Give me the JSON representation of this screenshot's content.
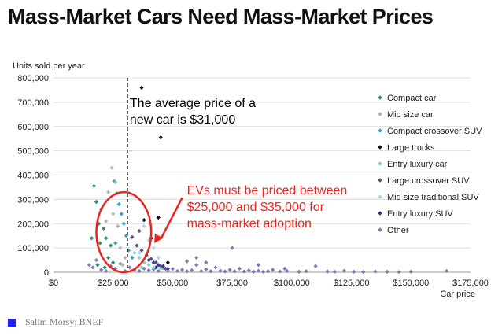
{
  "title": "Mass-Market Cars Need Mass-Market Prices",
  "source": "Salim Morsy; BNEF",
  "chart_data": {
    "type": "scatter",
    "ylabel": "Units sold per year",
    "xlabel": "Car price",
    "xlim": [
      0,
      175000
    ],
    "ylim": [
      0,
      800000
    ],
    "x_ticks": [
      0,
      25000,
      50000,
      75000,
      100000,
      125000,
      150000,
      175000
    ],
    "x_tick_labels": [
      "$0",
      "$25,000",
      "$50,000",
      "$75,000",
      "$100,000",
      "$125,000",
      "$150,000",
      "$175,000"
    ],
    "y_ticks": [
      0,
      100000,
      200000,
      300000,
      400000,
      500000,
      600000,
      700000,
      800000
    ],
    "y_tick_labels": [
      "0",
      "100,000",
      "200,000",
      "300,000",
      "400,000",
      "500,000",
      "600,000",
      "700,000",
      "800,000"
    ],
    "grid": "horizontal",
    "legend_position": "right",
    "reference_line": {
      "x": 31000,
      "style": "dashed",
      "color": "#000000"
    },
    "highlight_ellipse": {
      "x_center": 29500,
      "y_center": 165000,
      "x_radius": 11500,
      "y_radius": 165000,
      "color": "#e8261f"
    },
    "annotations": [
      {
        "lines": [
          "The average price of a",
          "new car is $31,000"
        ],
        "color": "#000000",
        "x": 32000,
        "y": 680000
      },
      {
        "lines": [
          "EVs must be priced between",
          "$25,000 and $35,000 for",
          "mass-market adoption"
        ],
        "color": "#e8261f",
        "x": 56000,
        "y": 320000
      }
    ],
    "series": [
      {
        "name": "Compact car",
        "color": "#2e8b6e",
        "points": [
          [
            17000,
            355000
          ],
          [
            18000,
            290000
          ],
          [
            19000,
            200000
          ],
          [
            20000,
            260000
          ],
          [
            21000,
            180000
          ],
          [
            22000,
            140000
          ],
          [
            19500,
            120000
          ],
          [
            24000,
            110000
          ],
          [
            16000,
            140000
          ],
          [
            23000,
            60000
          ],
          [
            25000,
            40000
          ],
          [
            18500,
            30000
          ],
          [
            21500,
            20000
          ]
        ]
      },
      {
        "name": "Mid size car",
        "color": "#b3b3b3",
        "points": [
          [
            24500,
            430000
          ],
          [
            23000,
            330000
          ],
          [
            25000,
            240000
          ],
          [
            26000,
            370000
          ],
          [
            27000,
            190000
          ],
          [
            28000,
            100000
          ],
          [
            30000,
            60000
          ],
          [
            22000,
            210000
          ],
          [
            29000,
            30000
          ]
        ]
      },
      {
        "name": "Compact crossover SUV",
        "color": "#35a2c4",
        "points": [
          [
            25500,
            375000
          ],
          [
            26500,
            325000
          ],
          [
            27500,
            280000
          ],
          [
            28500,
            240000
          ],
          [
            29500,
            200000
          ],
          [
            30500,
            150000
          ],
          [
            26000,
            120000
          ],
          [
            31500,
            90000
          ],
          [
            33000,
            60000
          ]
        ]
      },
      {
        "name": "Large trucks",
        "color": "#111111",
        "points": [
          [
            37000,
            760000
          ],
          [
            45000,
            555000
          ],
          [
            44000,
            225000
          ],
          [
            38000,
            215000
          ],
          [
            41000,
            140000
          ],
          [
            48000,
            40000
          ]
        ]
      },
      {
        "name": "Entry luxury car",
        "color": "#7fd6c9",
        "points": [
          [
            34000,
            80000
          ],
          [
            36000,
            60000
          ],
          [
            38000,
            40000
          ],
          [
            40000,
            30000
          ],
          [
            42000,
            20000
          ],
          [
            37000,
            20000
          ],
          [
            45000,
            15000
          ]
        ]
      },
      {
        "name": "Large crossover SUV",
        "color": "#5b4e73",
        "points": [
          [
            33000,
            145000
          ],
          [
            35000,
            110000
          ],
          [
            37000,
            90000
          ],
          [
            39000,
            70000
          ],
          [
            41000,
            55000
          ],
          [
            43000,
            40000
          ],
          [
            45000,
            25000
          ],
          [
            36000,
            170000
          ],
          [
            47000,
            15000
          ]
        ]
      },
      {
        "name": "Mid size traditional SUV",
        "color": "#a7d8ec",
        "points": [
          [
            38000,
            190000
          ],
          [
            40000,
            130000
          ],
          [
            42000,
            100000
          ],
          [
            36000,
            80000
          ],
          [
            44000,
            60000
          ]
        ]
      },
      {
        "name": "Entry luxury SUV",
        "color": "#2a3290",
        "points": [
          [
            40000,
            50000
          ],
          [
            42000,
            40000
          ],
          [
            44000,
            30000
          ],
          [
            46000,
            25000
          ],
          [
            48000,
            15000
          ],
          [
            43000,
            20000
          ]
        ]
      },
      {
        "name": "Other",
        "color": "#7d7ab5",
        "points": [
          [
            15000,
            30000
          ],
          [
            16500,
            20000
          ],
          [
            18000,
            50000
          ],
          [
            20000,
            10000
          ],
          [
            22000,
            5000
          ],
          [
            24000,
            25000
          ],
          [
            26000,
            15000
          ],
          [
            28000,
            35000
          ],
          [
            30000,
            5000
          ],
          [
            32000,
            20000
          ],
          [
            34000,
            10000
          ],
          [
            36000,
            5000
          ],
          [
            38000,
            15000
          ],
          [
            40000,
            8000
          ],
          [
            42000,
            12000
          ],
          [
            44000,
            5000
          ],
          [
            46000,
            18000
          ],
          [
            48000,
            6000
          ],
          [
            50000,
            14000
          ],
          [
            52000,
            5000
          ],
          [
            54000,
            10000
          ],
          [
            56000,
            4000
          ],
          [
            58000,
            8000
          ],
          [
            60000,
            30000
          ],
          [
            62000,
            5000
          ],
          [
            64000,
            12000
          ],
          [
            66000,
            4000
          ],
          [
            68000,
            20000
          ],
          [
            70000,
            6000
          ],
          [
            72000,
            3000
          ],
          [
            74000,
            10000
          ],
          [
            76000,
            4000
          ],
          [
            78000,
            15000
          ],
          [
            80000,
            3000
          ],
          [
            82000,
            8000
          ],
          [
            84000,
            2000
          ],
          [
            86000,
            6000
          ],
          [
            88000,
            2000
          ],
          [
            90000,
            4000
          ],
          [
            92000,
            10000
          ],
          [
            95000,
            3000
          ],
          [
            98000,
            5000
          ],
          [
            103000,
            2000
          ],
          [
            106000,
            4000
          ],
          [
            110000,
            25000
          ],
          [
            115000,
            3000
          ],
          [
            118000,
            2000
          ],
          [
            122000,
            6000
          ],
          [
            126000,
            2000
          ],
          [
            130000,
            1000
          ],
          [
            135000,
            3000
          ],
          [
            140000,
            2000
          ],
          [
            145000,
            1000
          ],
          [
            150000,
            2000
          ],
          [
            165000,
            5000
          ],
          [
            56000,
            45000
          ],
          [
            60000,
            60000
          ],
          [
            64000,
            40000
          ],
          [
            75000,
            100000
          ],
          [
            86000,
            30000
          ],
          [
            97000,
            15000
          ]
        ]
      }
    ]
  }
}
